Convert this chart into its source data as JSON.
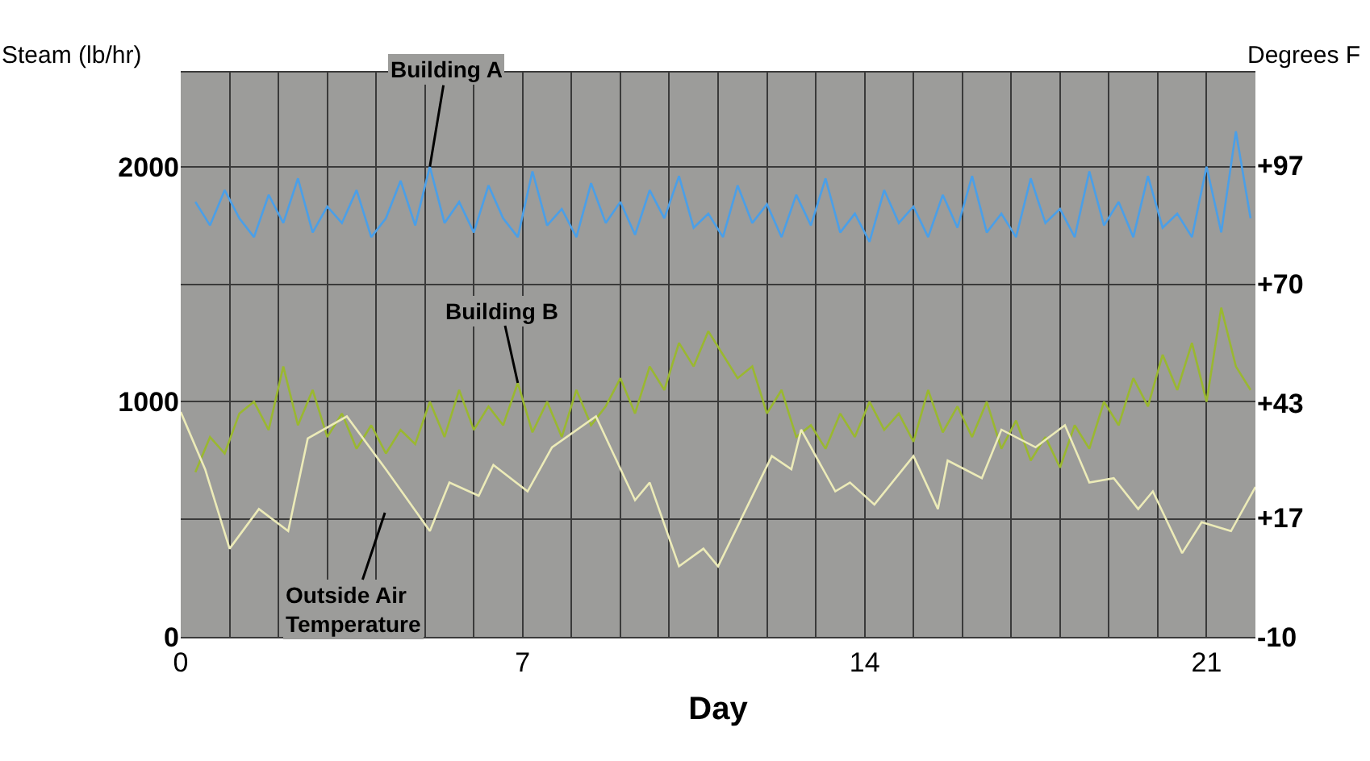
{
  "chart_data": {
    "type": "line",
    "xlabel": "Day",
    "ylabel": "Steam (lb/hr)",
    "y2label": "Degrees F",
    "xlim": [
      0,
      22
    ],
    "xticks": [
      0,
      {
        "value": 1,
        "label": null
      },
      {
        "value": 2,
        "label": null
      },
      {
        "value": 3,
        "label": null
      },
      {
        "value": 4,
        "label": null
      },
      {
        "value": 5,
        "label": null
      },
      {
        "value": 6,
        "label": null
      },
      7,
      {
        "value": 8,
        "label": null
      },
      {
        "value": 9,
        "label": null
      },
      {
        "value": 10,
        "label": null
      },
      {
        "value": 11,
        "label": null
      },
      {
        "value": 12,
        "label": null
      },
      {
        "value": 13,
        "label": null
      },
      14,
      {
        "value": 15,
        "label": null
      },
      {
        "value": 16,
        "label": null
      },
      {
        "value": 17,
        "label": null
      },
      {
        "value": 18,
        "label": null
      },
      {
        "value": 19,
        "label": null
      },
      {
        "value": 20,
        "label": null
      },
      21,
      {
        "value": 22,
        "label": null
      }
    ],
    "ylim": [
      0,
      2400
    ],
    "yticks": [
      0,
      {
        "value": 500,
        "label": null
      },
      1000,
      {
        "value": 1500,
        "label": null
      },
      2000
    ],
    "y2lim": [
      -10,
      118
    ],
    "y2ticks": [
      {
        "value": -10,
        "label": "-10"
      },
      {
        "value": 17,
        "label": "+17"
      },
      {
        "value": 43,
        "label": "+43"
      },
      {
        "value": 70,
        "label": "+70"
      },
      {
        "value": 97,
        "label": "+97"
      }
    ],
    "grid": true,
    "marker": "none",
    "line_style": "solid",
    "x": [
      0.3,
      0.6,
      0.9,
      1.2,
      1.5,
      1.8,
      2.1,
      2.4,
      2.7,
      3.0,
      3.3,
      3.6,
      3.9,
      4.2,
      4.5,
      4.8,
      5.1,
      5.4,
      5.7,
      6.0,
      6.3,
      6.6,
      6.9,
      7.2,
      7.5,
      7.8,
      8.1,
      8.4,
      8.7,
      9.0,
      9.3,
      9.6,
      9.9,
      10.2,
      10.5,
      10.8,
      11.1,
      11.4,
      11.7,
      12.0,
      12.3,
      12.6,
      12.9,
      13.2,
      13.5,
      13.8,
      14.1,
      14.4,
      14.7,
      15.0,
      15.3,
      15.6,
      15.9,
      16.2,
      16.5,
      16.8,
      17.1,
      17.4,
      17.7,
      18.0,
      18.3,
      18.6,
      18.9,
      19.2,
      19.5,
      19.8,
      20.1,
      20.4,
      20.7,
      21.0,
      21.3,
      21.6,
      21.9
    ],
    "series": [
      {
        "color": "#4a9fe8",
        "values": [
          1850,
          1750,
          1900,
          1780,
          1700,
          1880,
          1760,
          1950,
          1720,
          1830,
          1760,
          1900,
          1700,
          1780,
          1940,
          1750,
          2000,
          1760,
          1850,
          1720,
          1920,
          1780,
          1700,
          1980,
          1750,
          1820,
          1700,
          1930,
          1760,
          1850,
          1710,
          1900,
          1780,
          1960,
          1740,
          1800,
          1700,
          1920,
          1760,
          1840,
          1700,
          1880,
          1750,
          1950,
          1720,
          1800,
          1680,
          1900,
          1760,
          1830,
          1700,
          1880,
          1740,
          1960,
          1720,
          1800,
          1700,
          1950,
          1760,
          1820,
          1700,
          1980,
          1750,
          1850,
          1700,
          1960,
          1740,
          1800,
          1700,
          2000,
          1720,
          2150,
          1780
        ]
      },
      {
        "color": "#9ab830",
        "values": [
          700,
          850,
          780,
          950,
          1000,
          880,
          1150,
          900,
          1050,
          850,
          950,
          800,
          900,
          780,
          880,
          820,
          1000,
          850,
          1050,
          880,
          980,
          900,
          1080,
          870,
          1000,
          850,
          1050,
          900,
          980,
          1100,
          950,
          1150,
          1050,
          1250,
          1150,
          1300,
          1200,
          1100,
          1150,
          950,
          1050,
          850,
          900,
          800,
          950,
          850,
          1000,
          880,
          950,
          830,
          1050,
          870,
          980,
          850,
          1000,
          800,
          920,
          750,
          850,
          720,
          900,
          800,
          1000,
          900,
          1100,
          980,
          1200,
          1050,
          1250,
          1000,
          1400,
          1150,
          1050
        ]
      },
      {
        "color": "#ecebb8",
        "axis": "y2",
        "x": [
          0,
          0.5,
          1.0,
          1.6,
          2.2,
          2.6,
          3.4,
          4.2,
          5.1,
          5.5,
          6.1,
          6.4,
          7.1,
          7.6,
          8.5,
          9.3,
          9.6,
          10.2,
          10.7,
          11.0,
          12.1,
          12.5,
          12.7,
          13.4,
          13.7,
          14.2,
          15.0,
          15.5,
          15.7,
          16.4,
          16.8,
          17.5,
          18.1,
          18.6,
          19.1,
          19.6,
          19.9,
          20.5,
          20.9,
          21.5,
          22.0
        ],
        "values": [
          41,
          28,
          10,
          19,
          14,
          35,
          40,
          28,
          14,
          25,
          22,
          29,
          23,
          33,
          40,
          21,
          25,
          6,
          10,
          6,
          31,
          28,
          37,
          23,
          25,
          20,
          31,
          19,
          30,
          26,
          37,
          33,
          38,
          25,
          26,
          19,
          23,
          9,
          16,
          14,
          24
        ]
      }
    ],
    "annotations": [
      {
        "text": "Building A",
        "x": 5.1,
        "y": 2000
      },
      {
        "text": "Building B",
        "x": 6.9,
        "y": 1080
      },
      "Outside Air\nTemperature"
    ]
  }
}
